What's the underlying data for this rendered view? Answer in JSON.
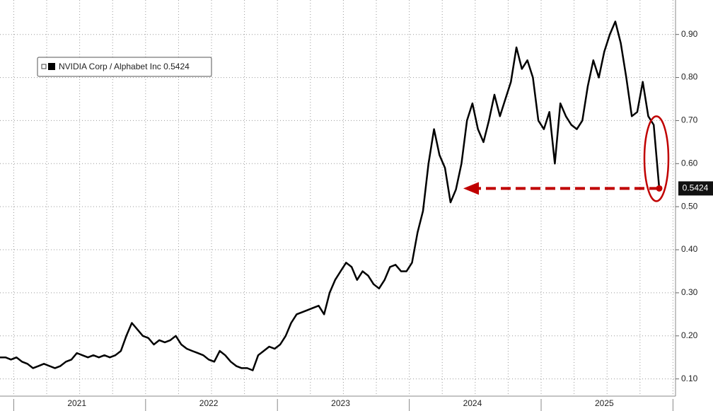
{
  "chart_data": {
    "type": "line",
    "categories": [
      null,
      null,
      null,
      null,
      null,
      null,
      null,
      null,
      null,
      null,
      null,
      null,
      null,
      null,
      "2021",
      null,
      null,
      null,
      null,
      null,
      null,
      null,
      null,
      null,
      null,
      null,
      null,
      null,
      null,
      null,
      null,
      null,
      null,
      null,
      null,
      null,
      null,
      null,
      "2022",
      null,
      null,
      null,
      null,
      null,
      null,
      null,
      null,
      null,
      null,
      null,
      null,
      null,
      null,
      null,
      null,
      null,
      null,
      null,
      null,
      null,
      null,
      null,
      "2023",
      null,
      null,
      null,
      null,
      null,
      null,
      null,
      null,
      null,
      null,
      null,
      null,
      null,
      null,
      null,
      null,
      null,
      null,
      null,
      null,
      null,
      null,
      null,
      "2024",
      null,
      null,
      null,
      null,
      null,
      null,
      null,
      null,
      null,
      null,
      null,
      null,
      null,
      null,
      null,
      null,
      null,
      null,
      null,
      null,
      null,
      null,
      null,
      "2025",
      null,
      null,
      null,
      null,
      null,
      null,
      null,
      null,
      null,
      null
    ],
    "series": [
      {
        "name": "NVIDIA Corp / Alphabet Inc",
        "color": "#000000",
        "values": [
          0.15,
          0.15,
          0.145,
          0.15,
          0.14,
          0.135,
          0.125,
          0.13,
          0.135,
          0.13,
          0.125,
          0.13,
          0.14,
          0.145,
          0.16,
          0.155,
          0.15,
          0.155,
          0.15,
          0.155,
          0.15,
          0.155,
          0.165,
          0.2,
          0.23,
          0.215,
          0.2,
          0.195,
          0.18,
          0.19,
          0.185,
          0.19,
          0.2,
          0.18,
          0.17,
          0.165,
          0.16,
          0.155,
          0.145,
          0.14,
          0.165,
          0.155,
          0.14,
          0.13,
          0.125,
          0.125,
          0.12,
          0.155,
          0.165,
          0.175,
          0.17,
          0.18,
          0.2,
          0.23,
          0.25,
          0.255,
          0.26,
          0.265,
          0.27,
          0.25,
          0.3,
          0.33,
          0.35,
          0.37,
          0.36,
          0.33,
          0.35,
          0.34,
          0.32,
          0.31,
          0.33,
          0.36,
          0.365,
          0.35,
          0.35,
          0.37,
          0.44,
          0.49,
          0.6,
          0.68,
          0.62,
          0.59,
          0.51,
          0.54,
          0.6,
          0.7,
          0.74,
          0.68,
          0.65,
          0.7,
          0.76,
          0.71,
          0.75,
          0.79,
          0.87,
          0.82,
          0.84,
          0.8,
          0.7,
          0.68,
          0.72,
          0.6,
          0.74,
          0.71,
          0.69,
          0.68,
          0.7,
          0.78,
          0.84,
          0.8,
          0.86,
          0.9,
          0.93,
          0.88,
          0.8,
          0.71,
          0.72,
          0.79,
          0.71,
          0.69,
          0.5424
        ]
      }
    ],
    "ylim": [
      0.06,
      0.98
    ],
    "yticks": [
      {
        "value": 0.1,
        "label": "0.10"
      },
      {
        "value": 0.2,
        "label": "0.20"
      },
      {
        "value": 0.3,
        "label": "0.30"
      },
      {
        "value": 0.4,
        "label": "0.40"
      },
      {
        "value": 0.5,
        "label": "0.50"
      },
      {
        "value": 0.6,
        "label": "0.60"
      },
      {
        "value": 0.7,
        "label": "0.70"
      },
      {
        "value": 0.8,
        "label": "0.80"
      },
      {
        "value": 0.9,
        "label": "0.90"
      }
    ],
    "grid": true
  }
}
